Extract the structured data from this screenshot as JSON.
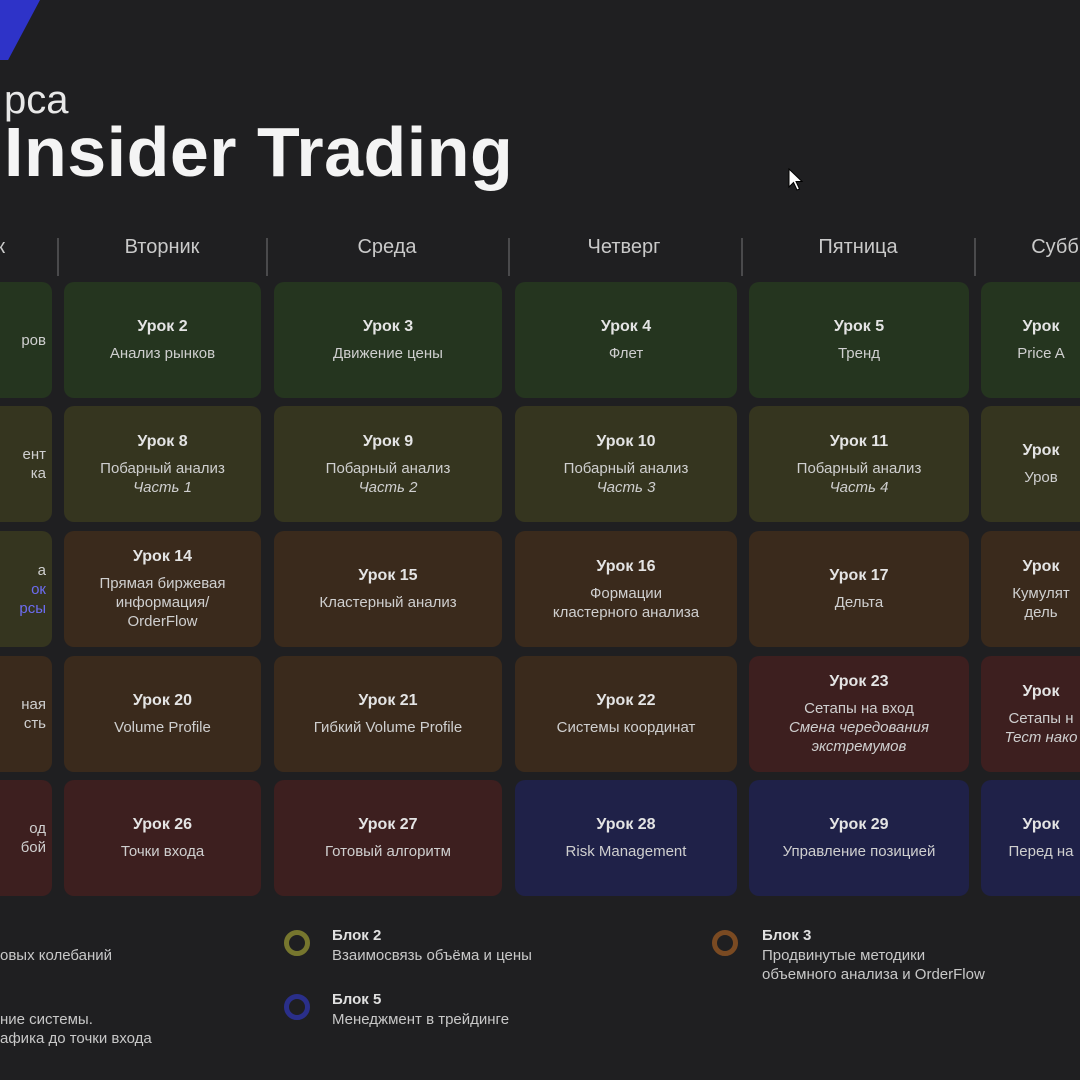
{
  "header": {
    "subtitle": "рса",
    "title": "Insider Trading"
  },
  "days": [
    "ик",
    "Вторник",
    "Среда",
    "Четверг",
    "Пятница",
    "Субб"
  ],
  "colors": {
    "green": "#25351f",
    "olive": "#35351f",
    "brown": "#3a2a1c",
    "red": "#3d1f1f",
    "blue": "#1f2148",
    "accent_blue": "#2e33c8"
  },
  "grid": [
    [
      {
        "color": "green",
        "title": "",
        "lines": [
          "ров"
        ]
      },
      {
        "color": "green",
        "title": "Урок 2",
        "lines": [
          "Анализ рынков"
        ]
      },
      {
        "color": "green",
        "title": "Урок 3",
        "lines": [
          "Движение цены"
        ]
      },
      {
        "color": "green",
        "title": "Урок 4",
        "lines": [
          "Флет"
        ]
      },
      {
        "color": "green",
        "title": "Урок 5",
        "lines": [
          "Тренд"
        ]
      },
      {
        "color": "green",
        "title": "Урок",
        "lines": [
          "Price A"
        ]
      }
    ],
    [
      {
        "color": "olive",
        "title": "",
        "lines": [
          "ент",
          "ка"
        ]
      },
      {
        "color": "olive",
        "title": "Урок 8",
        "lines": [
          "Побарный анализ"
        ],
        "italic": "Часть 1"
      },
      {
        "color": "olive",
        "title": "Урок 9",
        "lines": [
          "Побарный анализ"
        ],
        "italic": "Часть 2"
      },
      {
        "color": "olive",
        "title": "Урок 10",
        "lines": [
          "Побарный анализ"
        ],
        "italic": "Часть 3"
      },
      {
        "color": "olive",
        "title": "Урок 11",
        "lines": [
          "Побарный анализ"
        ],
        "italic": "Часть 4"
      },
      {
        "color": "olive",
        "title": "Урок",
        "lines": [
          "Уров"
        ]
      }
    ],
    [
      {
        "color": "olive",
        "title": "",
        "lines": [
          "а",
          "ок",
          "рсы"
        ],
        "highlight": true
      },
      {
        "color": "brown",
        "title": "Урок 14",
        "lines": [
          "Прямая биржевая",
          "информация/",
          "OrderFlow"
        ]
      },
      {
        "color": "brown",
        "title": "Урок 15",
        "lines": [
          "Кластерный анализ"
        ]
      },
      {
        "color": "brown",
        "title": "Урок 16",
        "lines": [
          "Формации",
          "кластерного анализа"
        ]
      },
      {
        "color": "brown",
        "title": "Урок 17",
        "lines": [
          "Дельта"
        ]
      },
      {
        "color": "brown",
        "title": "Урок",
        "lines": [
          "Кумулят",
          "дель"
        ]
      }
    ],
    [
      {
        "color": "brown",
        "title": "",
        "lines": [
          "ная",
          "сть"
        ]
      },
      {
        "color": "brown",
        "title": "Урок 20",
        "lines": [
          "Volume Profile"
        ]
      },
      {
        "color": "brown",
        "title": "Урок 21",
        "lines": [
          "Гибкий Volume Profile"
        ]
      },
      {
        "color": "brown",
        "title": "Урок 22",
        "lines": [
          "Системы координат"
        ]
      },
      {
        "color": "red",
        "title": "Урок 23",
        "lines": [
          "Сетапы на вход"
        ],
        "italic": "Смена чередования экстремумов"
      },
      {
        "color": "red",
        "title": "Урок",
        "lines": [
          "Сетапы н"
        ],
        "italic": "Тест нако"
      }
    ],
    [
      {
        "color": "red",
        "title": "",
        "lines": [
          "од",
          "бой"
        ]
      },
      {
        "color": "red",
        "title": "Урок 26",
        "lines": [
          "Точки входа"
        ]
      },
      {
        "color": "red",
        "title": "Урок 27",
        "lines": [
          "Готовый алгоритм"
        ]
      },
      {
        "color": "blue",
        "title": "Урок 28",
        "lines": [
          "Risk Management"
        ]
      },
      {
        "color": "blue",
        "title": "Урок 29",
        "lines": [
          "Управление позицией"
        ]
      },
      {
        "color": "blue",
        "title": "Урок",
        "lines": [
          "Перед на"
        ]
      }
    ]
  ],
  "legend": {
    "block1_text": "овых колебаний",
    "block2": {
      "title": "Блок 2",
      "text": "Взаимосвязь объёма и цены",
      "ring": "#76762e"
    },
    "block3": {
      "title": "Блок 3",
      "text1": "Продвинутые методики",
      "text2": "объемного анализа и OrderFlow",
      "ring": "#7a4a22"
    },
    "block4_text1": "ние системы.",
    "block4_text2": "афика до точки входа",
    "block5": {
      "title": "Блок 5",
      "text": "Менеджмент в трейдинге",
      "ring": "#2a2f8a"
    }
  }
}
